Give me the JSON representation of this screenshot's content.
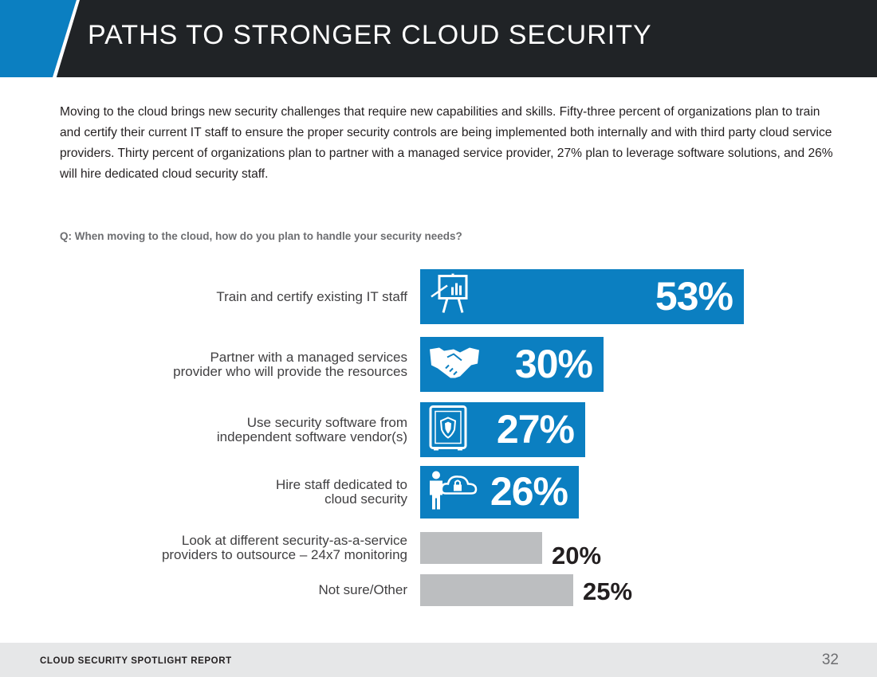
{
  "header": {
    "title": "PATHS TO STRONGER CLOUD SECURITY"
  },
  "intro": {
    "text": "Moving to the cloud brings new security challenges that require new capabilities and skills. Fifty-three percent of organizations plan to train and certify their current IT staff to ensure the proper security controls are being implemented both internally and with third party cloud service providers. Thirty percent of organizations plan to partner with a managed service provider, 27% plan to leverage software solutions, and 26% will hire dedicated cloud security staff."
  },
  "question": "Q: When moving to the cloud, how do you plan to handle your security needs?",
  "chart_data": {
    "type": "bar",
    "orientation": "horizontal",
    "title": "",
    "xlabel": "",
    "ylabel": "",
    "xlim": [
      0,
      53
    ],
    "categories": [
      "Train and certify existing IT staff",
      "Partner with a managed services\nprovider who will provide the resources",
      "Use security software from\nindependent software vendor(s)",
      "Hire staff dedicated to\ncloud security",
      "Look at different security-as-a-service\nproviders to outsource – 24x7 monitoring",
      "Not sure/Other"
    ],
    "values": [
      53,
      30,
      27,
      26,
      20,
      25
    ],
    "value_labels": [
      "53%",
      "30%",
      "27%",
      "26%",
      "20%",
      "25%"
    ],
    "bar_colors": [
      "#0b7fc1",
      "#0b7fc1",
      "#0b7fc1",
      "#0b7fc1",
      "#bcbec0",
      "#bcbec0"
    ],
    "icons": [
      "presentation-board-icon",
      "handshake-icon",
      "safe-icon",
      "person-cloud-lock-icon",
      "",
      ""
    ]
  },
  "footer": {
    "report_name": "CLOUD SECURITY SPOTLIGHT REPORT",
    "page_number": "32"
  }
}
